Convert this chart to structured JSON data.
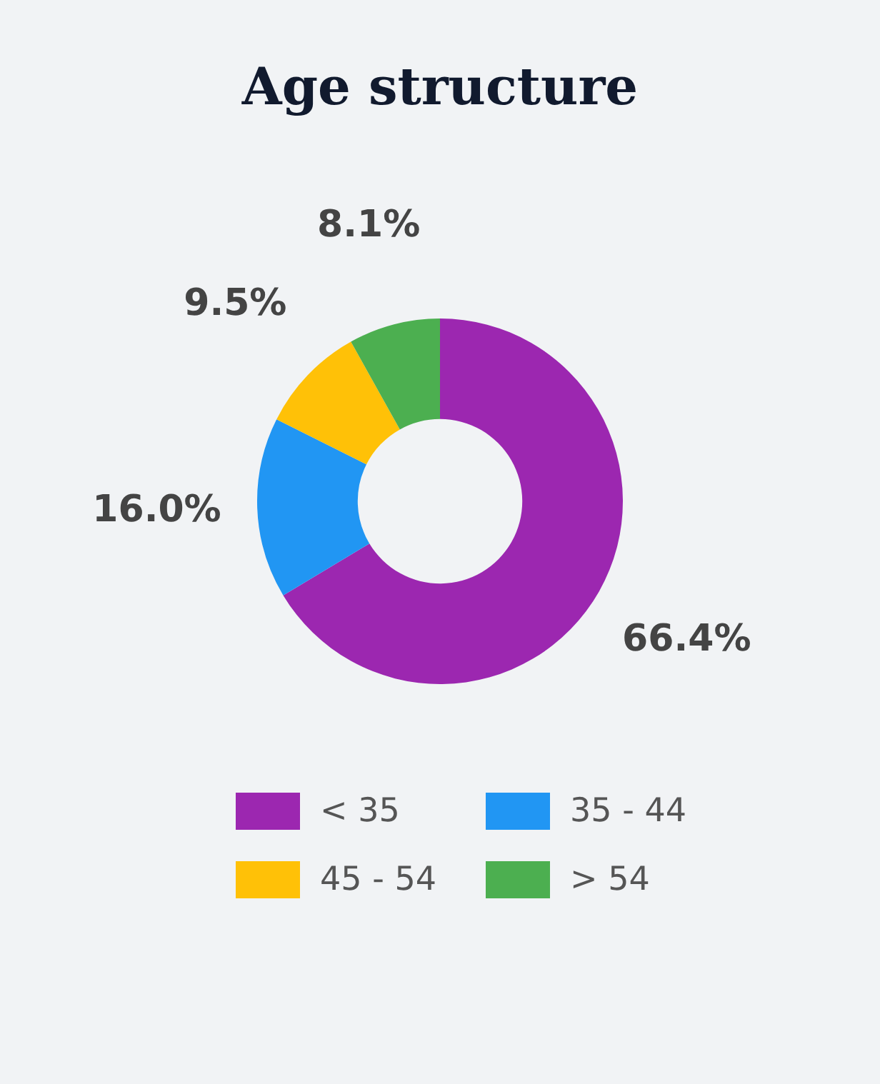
{
  "chart_data": {
    "type": "donut",
    "title": "Age structure",
    "categories": [
      "< 35",
      "35 - 44",
      "45 - 54",
      "> 54"
    ],
    "values": [
      66.4,
      16.0,
      9.5,
      8.1
    ],
    "colors": [
      "#9c27b0",
      "#2196f3",
      "#ffc107",
      "#4caf50"
    ],
    "value_labels": [
      "66.4%",
      "16.0%",
      "9.5%",
      "8.1%"
    ],
    "legend": "bottom"
  }
}
